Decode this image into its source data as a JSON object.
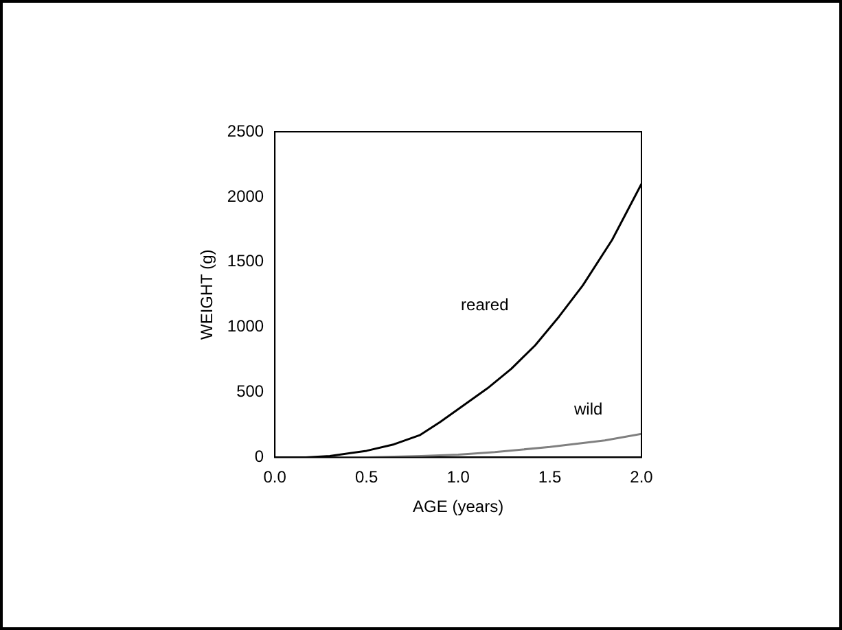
{
  "chart_data": {
    "type": "line",
    "xlabel": "AGE (years)",
    "ylabel": "WEIGHT (g)",
    "xlim": [
      0,
      2
    ],
    "xticks": [
      {
        "value": 0,
        "label": "0.0"
      },
      {
        "value": 0.5,
        "label": "0.5"
      },
      {
        "value": 1,
        "label": "1.0"
      },
      {
        "value": 1.5,
        "label": "1.5"
      },
      {
        "value": 2,
        "label": "2.0"
      }
    ],
    "ylim": [
      0,
      2500
    ],
    "yticks": [
      0,
      500,
      1000,
      1500,
      2000,
      2500
    ],
    "grid": false,
    "legend": false,
    "marker": "none",
    "line_style": "solid",
    "series": [
      {
        "name": "reared",
        "color": "#000000",
        "x": [
          0.17,
          0.3,
          0.5,
          0.65,
          0.79,
          0.9,
          1.0,
          1.16,
          1.29,
          1.42,
          1.55,
          1.68,
          1.84,
          2.0
        ],
        "values": [
          0,
          10,
          50,
          100,
          170,
          270,
          370,
          530,
          680,
          860,
          1080,
          1320,
          1670,
          2100
        ]
      },
      {
        "name": "wild",
        "color": "#808080",
        "x": [
          0.2,
          0.5,
          0.8,
          1.0,
          1.2,
          1.5,
          1.8,
          2.0
        ],
        "values": [
          0,
          0,
          10,
          20,
          40,
          80,
          130,
          180
        ]
      }
    ]
  }
}
